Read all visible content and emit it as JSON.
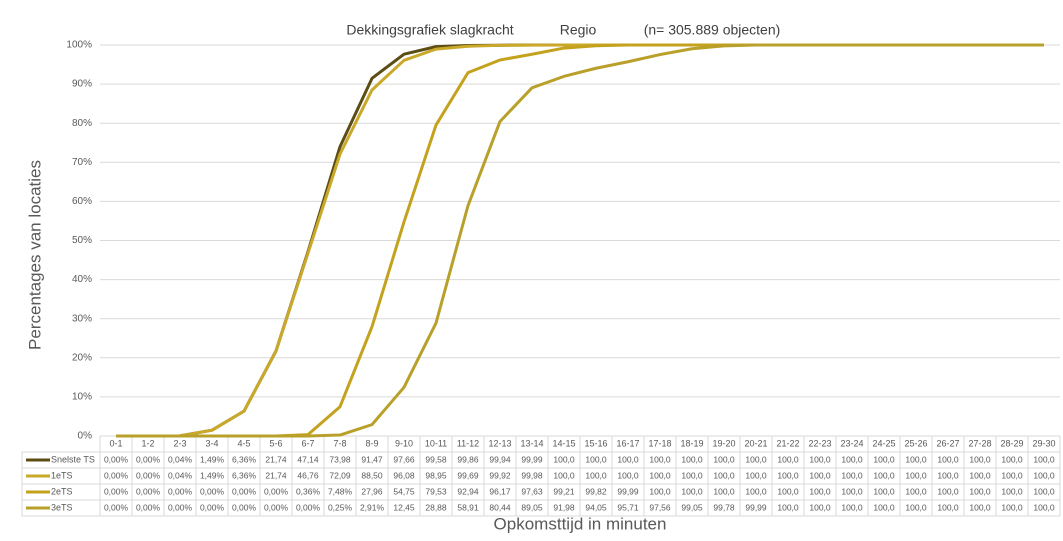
{
  "chart_data": {
    "type": "line",
    "title": "Dekkingsgrafiek slagkracht",
    "subtitle": "Regio",
    "annotation": "(n= 305.889 objecten)",
    "y_label": "Percentages van locaties",
    "x_label": "Opkomsttijd in minuten",
    "categories": [
      "0-1",
      "1-2",
      "2-3",
      "3-4",
      "4-5",
      "5-6",
      "6-7",
      "7-8",
      "8-9",
      "9-10",
      "10-11",
      "11-12",
      "12-13",
      "13-14",
      "14-15",
      "15-16",
      "16-17",
      "17-18",
      "18-19",
      "19-20",
      "20-21",
      "21-22",
      "22-23",
      "23-24",
      "24-25",
      "25-26",
      "26-27",
      "27-28",
      "28-29",
      "29-30"
    ],
    "ylim": [
      0,
      100
    ],
    "yticks": [
      {
        "value": 0,
        "label": "0%"
      },
      {
        "value": 10,
        "label": "10%"
      },
      {
        "value": 20,
        "label": "20%"
      },
      {
        "value": 30,
        "label": "30%"
      },
      {
        "value": 40,
        "label": "40%"
      },
      {
        "value": 50,
        "label": "50%"
      },
      {
        "value": 60,
        "label": "60%"
      },
      {
        "value": 70,
        "label": "70%"
      },
      {
        "value": 80,
        "label": "80%"
      },
      {
        "value": 90,
        "label": "90%"
      },
      {
        "value": 100,
        "label": "100%"
      }
    ],
    "grid": true,
    "series": [
      {
        "name": "Snelste TS",
        "color": "#5c4d14",
        "values": [
          0,
          0,
          0.04,
          1.49,
          6.36,
          21.74,
          47.14,
          73.98,
          91.47,
          97.66,
          99.58,
          99.86,
          99.94,
          99.99,
          100,
          100,
          100,
          100,
          100,
          100,
          100,
          100,
          100,
          100,
          100,
          100,
          100,
          100,
          100,
          100
        ],
        "value_labels": [
          "0,00%",
          "0,00%",
          "0,04%",
          "1,49%",
          "6,36%",
          "21,74",
          "47,14",
          "73,98",
          "91,47",
          "97,66",
          "99,58",
          "99,86",
          "99,94",
          "99,99",
          "100,0",
          "100,0",
          "100,0",
          "100,0",
          "100,0",
          "100,0",
          "100,0",
          "100,0",
          "100,0",
          "100,0",
          "100,0",
          "100,0",
          "100,0",
          "100,0",
          "100,0",
          "100,0"
        ]
      },
      {
        "name": "1eTS",
        "color": "#c9a82a",
        "values": [
          0,
          0,
          0.04,
          1.49,
          6.36,
          21.74,
          46.76,
          72.09,
          88.5,
          96.08,
          98.95,
          99.69,
          99.92,
          99.98,
          100,
          100,
          100,
          100,
          100,
          100,
          100,
          100,
          100,
          100,
          100,
          100,
          100,
          100,
          100,
          100
        ],
        "value_labels": [
          "0,00%",
          "0,00%",
          "0,04%",
          "1,49%",
          "6,36%",
          "21,74",
          "46,76",
          "72,09",
          "88,50",
          "96,08",
          "98,95",
          "99,69",
          "99,92",
          "99,98",
          "100,0",
          "100,0",
          "100,0",
          "100,0",
          "100,0",
          "100,0",
          "100,0",
          "100,0",
          "100,0",
          "100,0",
          "100,0",
          "100,0",
          "100,0",
          "100,0",
          "100,0",
          "100,0"
        ]
      },
      {
        "name": "2eTS",
        "color": "#c4a21e",
        "values": [
          0,
          0,
          0,
          0,
          0,
          0,
          0.36,
          7.48,
          27.96,
          54.75,
          79.53,
          92.94,
          96.17,
          97.63,
          99.21,
          99.82,
          99.99,
          100,
          100,
          100,
          100,
          100,
          100,
          100,
          100,
          100,
          100,
          100,
          100,
          100
        ],
        "value_labels": [
          "0,00%",
          "0,00%",
          "0,00%",
          "0,00%",
          "0,00%",
          "0,00%",
          "0,36%",
          "7,48%",
          "27,96",
          "54,75",
          "79,53",
          "92,94",
          "96,17",
          "97,63",
          "99,21",
          "99,82",
          "99,99",
          "100,0",
          "100,0",
          "100,0",
          "100,0",
          "100,0",
          "100,0",
          "100,0",
          "100,0",
          "100,0",
          "100,0",
          "100,0",
          "100,0",
          "100,0"
        ]
      },
      {
        "name": "3eTS",
        "color": "#b9a02a",
        "values": [
          0,
          0,
          0,
          0,
          0,
          0,
          0,
          0.25,
          2.91,
          12.45,
          28.88,
          58.91,
          80.44,
          89.05,
          91.98,
          94.05,
          95.71,
          97.56,
          99.05,
          99.78,
          99.99,
          100,
          100,
          100,
          100,
          100,
          100,
          100,
          100,
          100
        ],
        "value_labels": [
          "0,00%",
          "0,00%",
          "0,00%",
          "0,00%",
          "0,00%",
          "0,00%",
          "0,00%",
          "0,25%",
          "2,91%",
          "12,45",
          "28,88",
          "58,91",
          "80,44",
          "89,05",
          "91,98",
          "94,05",
          "95,71",
          "97,56",
          "99,05",
          "99,78",
          "99,99",
          "100,0",
          "100,0",
          "100,0",
          "100,0",
          "100,0",
          "100,0",
          "100,0",
          "100,0",
          "100,0"
        ]
      }
    ]
  }
}
